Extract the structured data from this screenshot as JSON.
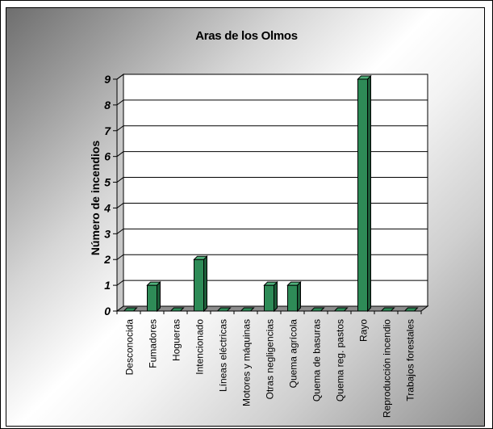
{
  "chart_data": {
    "type": "bar",
    "title": "Aras de los Olmos",
    "ylabel": "Número de incendios",
    "xlabel": "",
    "ylim": [
      0,
      9
    ],
    "yticks": [
      "0",
      "1",
      "2",
      "3",
      "4",
      "5",
      "6",
      "7",
      "8",
      "9"
    ],
    "categories": [
      "Desconocida",
      "Fumadores",
      "Hogueras",
      "Intencionado",
      "Líneas eléctricas",
      "Motores y máquinas",
      "Otras negligencias",
      "Quema agrícola",
      "Quema de basuras",
      "Quema reg. pastos",
      "Rayo",
      "Reproducción incendio",
      "Trabajos forestales"
    ],
    "values": [
      0,
      1,
      0,
      2,
      0,
      0,
      1,
      1,
      0,
      0,
      9,
      0,
      0
    ],
    "grid": true,
    "bar_color": "#2e8b57",
    "bar_side_color": "#1d5e3a",
    "bar_top_color": "#4fb07a"
  }
}
